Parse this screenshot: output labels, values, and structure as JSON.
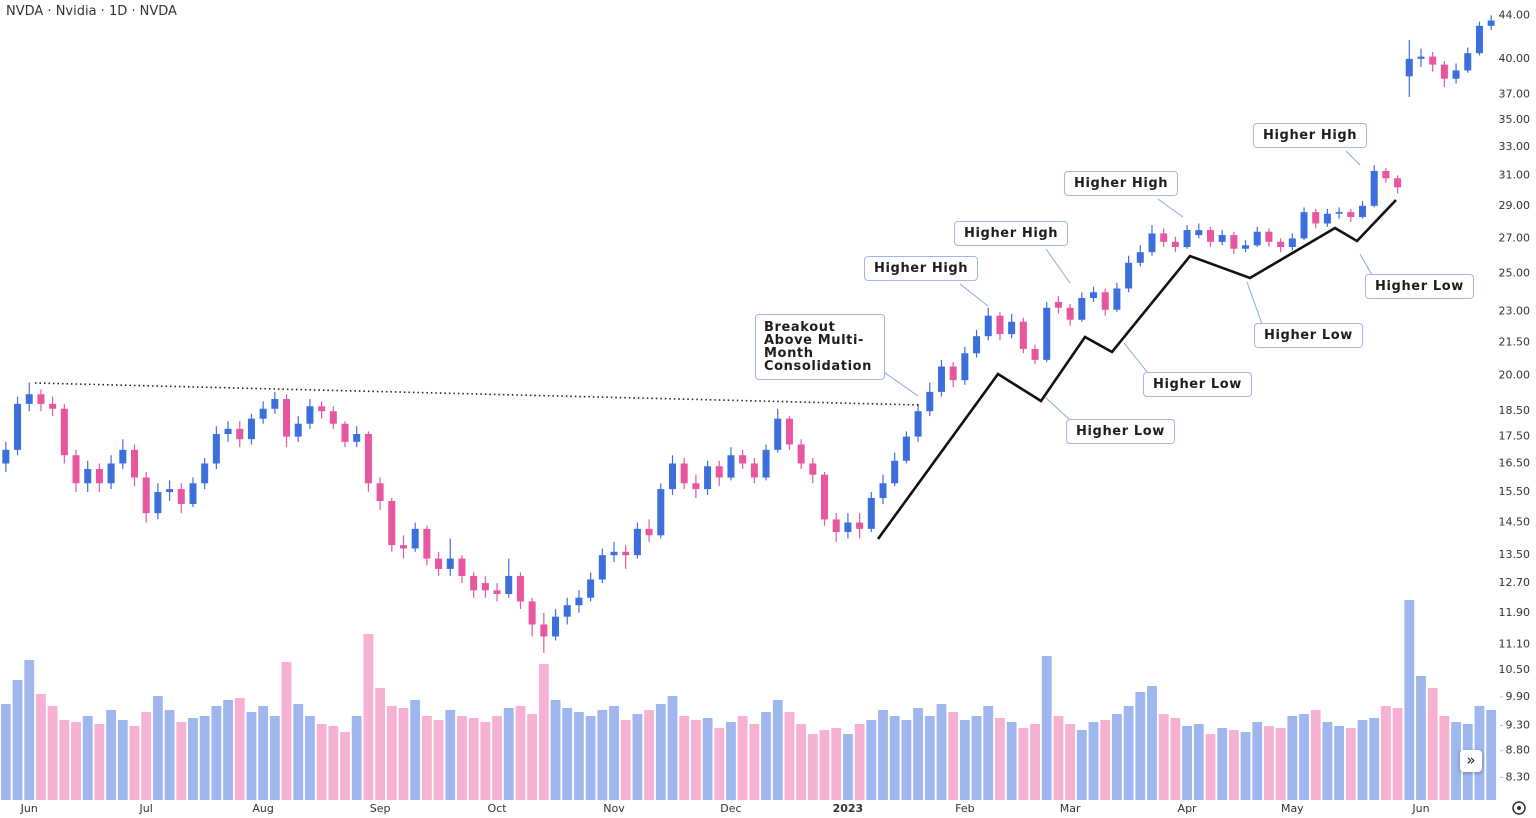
{
  "chart_data": {
    "type": "candlestick",
    "title": "NVDA · Nvidia · 1D · NVDA",
    "categories": [
      null,
      null,
      "Jun",
      null,
      null,
      null,
      null,
      null,
      null,
      null,
      null,
      null,
      "Jul",
      null,
      null,
      null,
      null,
      null,
      null,
      null,
      null,
      null,
      "Aug",
      null,
      null,
      null,
      null,
      null,
      null,
      null,
      null,
      null,
      "Sep",
      null,
      null,
      null,
      null,
      null,
      null,
      null,
      null,
      null,
      "Oct",
      null,
      null,
      null,
      null,
      null,
      null,
      null,
      null,
      null,
      "Nov",
      null,
      null,
      null,
      null,
      null,
      null,
      null,
      null,
      null,
      "Dec",
      null,
      null,
      null,
      null,
      null,
      null,
      null,
      null,
      null,
      "2023",
      null,
      null,
      null,
      null,
      null,
      null,
      null,
      null,
      null,
      "Feb",
      null,
      null,
      null,
      null,
      null,
      null,
      null,
      null,
      "Mar",
      null,
      null,
      null,
      null,
      null,
      null,
      null,
      null,
      null,
      "Apr",
      null,
      null,
      null,
      null,
      null,
      null,
      null,
      null,
      "May",
      null,
      null,
      null,
      null,
      null,
      null,
      null,
      null,
      null,
      null,
      "Jun",
      null,
      null,
      null,
      null,
      null,
      null
    ],
    "open": [
      16.5,
      17.0,
      18.8,
      19.2,
      18.8,
      18.6,
      16.8,
      15.8,
      16.3,
      15.8,
      16.5,
      17.0,
      16.0,
      14.8,
      15.5,
      15.6,
      15.1,
      15.8,
      16.5,
      17.6,
      17.8,
      17.4,
      18.2,
      18.6,
      19.0,
      17.5,
      18.0,
      18.7,
      18.5,
      18.0,
      17.3,
      17.6,
      15.8,
      15.2,
      13.8,
      13.7,
      14.3,
      13.4,
      13.1,
      13.4,
      12.9,
      12.7,
      12.5,
      12.4,
      12.9,
      12.2,
      11.6,
      11.3,
      11.8,
      12.1,
      12.3,
      12.8,
      13.5,
      13.6,
      13.5,
      14.3,
      14.1,
      15.6,
      16.5,
      15.8,
      15.6,
      16.4,
      16.0,
      16.8,
      16.5,
      16.0,
      17.0,
      18.2,
      17.2,
      16.5,
      16.1,
      14.6,
      14.2,
      14.5,
      14.3,
      15.3,
      15.8,
      16.6,
      17.5,
      18.5,
      19.3,
      20.4,
      19.8,
      21.0,
      21.8,
      22.8,
      21.9,
      22.5,
      21.2,
      20.7,
      23.5,
      23.2,
      22.6,
      23.7,
      24.0,
      23.1,
      24.2,
      25.6,
      26.2,
      27.3,
      26.8,
      26.5,
      27.2,
      27.5,
      26.8,
      27.2,
      26.4,
      26.6,
      27.4,
      26.8,
      26.5,
      27.0,
      28.6,
      27.9,
      28.5,
      28.6,
      28.3,
      29.0,
      31.3,
      30.8,
      38.5,
      40.0,
      40.2,
      39.5,
      38.3,
      39.0,
      40.5,
      43.0
    ],
    "high": [
      17.3,
      19.1,
      19.7,
      19.4,
      19.1,
      18.8,
      17.0,
      16.6,
      16.5,
      16.8,
      17.4,
      17.2,
      16.2,
      15.8,
      15.9,
      15.8,
      16.0,
      16.7,
      17.9,
      18.1,
      18.1,
      18.4,
      18.9,
      19.3,
      19.2,
      18.3,
      19.0,
      18.9,
      18.7,
      18.1,
      17.9,
      17.7,
      16.0,
      15.3,
      14.1,
      14.5,
      14.4,
      13.6,
      14.0,
      13.5,
      13.0,
      12.9,
      12.7,
      13.4,
      13.0,
      12.3,
      11.9,
      12.0,
      12.3,
      12.5,
      13.0,
      13.7,
      13.9,
      13.8,
      14.5,
      14.6,
      15.8,
      16.8,
      16.7,
      16.1,
      16.6,
      16.6,
      17.1,
      17.0,
      16.7,
      17.2,
      18.6,
      18.3,
      17.4,
      16.7,
      16.2,
      14.8,
      14.8,
      14.8,
      15.5,
      16.1,
      16.9,
      17.7,
      18.8,
      19.7,
      20.7,
      20.6,
      21.3,
      22.1,
      23.2,
      23.0,
      22.9,
      22.7,
      21.4,
      23.5,
      23.8,
      23.4,
      24.0,
      24.3,
      24.2,
      24.5,
      26.0,
      26.6,
      27.8,
      27.6,
      27.1,
      27.8,
      27.9,
      27.7,
      27.5,
      27.4,
      26.9,
      27.7,
      27.6,
      27.0,
      27.3,
      28.9,
      28.8,
      28.8,
      28.9,
      28.8,
      29.3,
      31.7,
      31.5,
      31.0,
      41.7,
      40.9,
      40.6,
      39.8,
      39.6,
      41.0,
      43.4,
      44.0
    ],
    "low": [
      16.2,
      16.8,
      18.5,
      18.5,
      18.3,
      16.5,
      15.5,
      15.5,
      15.5,
      15.6,
      16.3,
      15.7,
      14.5,
      14.6,
      15.2,
      14.8,
      15.0,
      15.6,
      16.3,
      17.3,
      17.1,
      17.2,
      18.0,
      18.4,
      17.1,
      17.3,
      17.8,
      18.2,
      17.8,
      17.1,
      17.1,
      15.5,
      14.9,
      13.6,
      13.4,
      13.6,
      13.2,
      12.9,
      12.9,
      12.7,
      12.3,
      12.3,
      12.2,
      12.3,
      12.0,
      11.3,
      10.9,
      11.2,
      11.6,
      11.9,
      12.2,
      12.7,
      13.3,
      13.1,
      13.4,
      13.9,
      14.0,
      15.4,
      15.6,
      15.3,
      15.4,
      15.7,
      15.9,
      16.3,
      15.8,
      15.9,
      16.9,
      17.0,
      16.3,
      15.8,
      14.4,
      13.9,
      14.0,
      14.0,
      14.2,
      15.1,
      15.7,
      16.5,
      17.3,
      18.3,
      19.1,
      19.5,
      19.6,
      20.8,
      21.6,
      21.6,
      21.7,
      21.0,
      20.5,
      20.6,
      22.9,
      22.3,
      22.5,
      23.5,
      22.8,
      23.0,
      24.0,
      25.4,
      26.0,
      26.5,
      26.2,
      26.4,
      27.0,
      26.5,
      26.6,
      26.1,
      26.2,
      26.5,
      26.5,
      26.2,
      26.3,
      26.9,
      27.6,
      27.7,
      28.2,
      28.0,
      28.2,
      28.9,
      30.5,
      29.8,
      36.8,
      39.3,
      38.9,
      37.6,
      37.9,
      38.8,
      40.3,
      42.6
    ],
    "close": [
      17.0,
      18.8,
      19.2,
      18.8,
      18.6,
      16.8,
      15.8,
      16.3,
      15.8,
      16.5,
      17.0,
      16.0,
      14.8,
      15.5,
      15.6,
      15.1,
      15.8,
      16.5,
      17.6,
      17.8,
      17.4,
      18.2,
      18.6,
      19.0,
      17.5,
      18.0,
      18.7,
      18.5,
      18.0,
      17.3,
      17.6,
      15.8,
      15.2,
      13.8,
      13.7,
      14.3,
      13.4,
      13.1,
      13.4,
      12.9,
      12.5,
      12.5,
      12.4,
      12.9,
      12.2,
      11.6,
      11.3,
      11.8,
      12.1,
      12.3,
      12.8,
      13.5,
      13.6,
      13.5,
      14.3,
      14.1,
      15.6,
      16.5,
      15.8,
      15.6,
      16.4,
      16.0,
      16.8,
      16.5,
      16.0,
      17.0,
      18.2,
      17.2,
      16.5,
      16.1,
      14.6,
      14.2,
      14.5,
      14.3,
      15.3,
      15.8,
      16.6,
      17.5,
      18.5,
      19.3,
      20.4,
      19.8,
      21.0,
      21.8,
      22.8,
      21.9,
      22.5,
      21.2,
      20.7,
      23.2,
      23.2,
      22.6,
      23.7,
      24.0,
      23.1,
      24.2,
      25.6,
      26.2,
      27.3,
      26.8,
      26.5,
      27.5,
      27.5,
      26.8,
      27.2,
      26.4,
      26.6,
      27.4,
      26.8,
      26.5,
      27.0,
      28.6,
      27.9,
      28.5,
      28.6,
      28.3,
      29.0,
      31.3,
      30.8,
      30.2,
      40.0,
      40.2,
      39.5,
      38.3,
      39.0,
      40.5,
      43.0,
      43.5
    ],
    "volume": [
      480,
      600,
      700,
      530,
      470,
      400,
      390,
      420,
      380,
      450,
      400,
      370,
      440,
      520,
      450,
      390,
      410,
      420,
      470,
      500,
      510,
      440,
      470,
      420,
      690,
      480,
      420,
      380,
      370,
      340,
      420,
      830,
      560,
      470,
      460,
      500,
      420,
      400,
      450,
      420,
      410,
      390,
      420,
      460,
      470,
      430,
      680,
      500,
      460,
      440,
      420,
      450,
      470,
      400,
      430,
      450,
      480,
      520,
      420,
      400,
      410,
      360,
      390,
      420,
      380,
      440,
      500,
      440,
      380,
      330,
      350,
      360,
      330,
      380,
      400,
      450,
      420,
      400,
      460,
      420,
      480,
      440,
      400,
      420,
      470,
      410,
      390,
      360,
      380,
      720,
      420,
      380,
      350,
      390,
      400,
      430,
      470,
      540,
      570,
      430,
      410,
      370,
      380,
      330,
      360,
      350,
      340,
      390,
      370,
      360,
      420,
      430,
      450,
      390,
      370,
      360,
      400,
      410,
      470,
      460,
      1000,
      620,
      560,
      420,
      390,
      380,
      470,
      450
    ],
    "up_color": "#3d6fdc",
    "down_color": "#e8569f",
    "volume_up_color": "#9fb6ef",
    "volume_down_color": "#f6b1d3",
    "log_scale": true,
    "ylim": [
      7.9,
      45.5
    ],
    "yticks": [
      {
        "value": 44,
        "label": "44.00"
      },
      {
        "value": 40,
        "label": "40.00"
      },
      {
        "value": 37,
        "label": "37.00"
      },
      {
        "value": 35,
        "label": "35.00"
      },
      {
        "value": 33,
        "label": "33.00"
      },
      {
        "value": 31,
        "label": "31.00"
      },
      {
        "value": 29,
        "label": "29.00"
      },
      {
        "value": 27,
        "label": "27.00"
      },
      {
        "value": 25,
        "label": "25.00"
      },
      {
        "value": 23,
        "label": "23.00"
      },
      {
        "value": 21.5,
        "label": "21.50"
      },
      {
        "value": 20,
        "label": "20.00"
      },
      {
        "value": 18.5,
        "label": "18.50"
      },
      {
        "value": 17.5,
        "label": "17.50"
      },
      {
        "value": 16.5,
        "label": "16.50"
      },
      {
        "value": 15.5,
        "label": "15.50"
      },
      {
        "value": 14.5,
        "label": "14.50"
      },
      {
        "value": 13.5,
        "label": "13.50"
      },
      {
        "value": 12.7,
        "label": "12.70"
      },
      {
        "value": 11.9,
        "label": "11.90"
      },
      {
        "value": 11.1,
        "label": "11.10"
      },
      {
        "value": 10.5,
        "label": "10.50"
      },
      {
        "value": 9.9,
        "label": "9.90"
      },
      {
        "value": 9.3,
        "label": "9.30"
      },
      {
        "value": 8.8,
        "label": "8.80"
      },
      {
        "value": 8.3,
        "label": "8.30"
      }
    ],
    "annotations": [
      "Breakout Above Multi-Month Consolidation",
      "Higher High",
      "Higher High",
      "Higher High",
      "Higher High",
      "Higher Low",
      "Higher Low",
      "Higher Low",
      "Higher Low"
    ]
  }
}
